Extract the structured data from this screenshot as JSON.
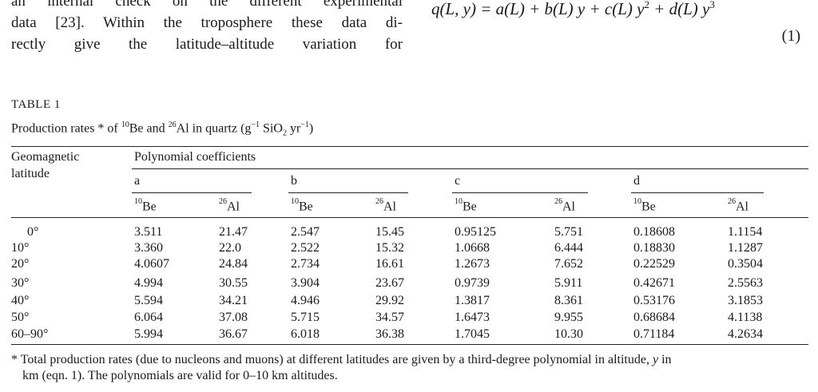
{
  "body_text": {
    "lines": [
      "an internal check on the different experimental",
      "data [23]. Within the troposphere these data di-",
      "rectly give the latitude–altitude variation for"
    ]
  },
  "equation": {
    "lhs": "q(L, y) = a(L) + b(L) y + c(L) y",
    "exp2": "2",
    "mid": " + d(L) y",
    "exp3": "3",
    "number": "(1)"
  },
  "table": {
    "label": "TABLE 1",
    "caption_pre": "Production rates * of ",
    "iso_be_mass": "10",
    "iso_be": "Be",
    "caption_and": " and ",
    "iso_al_mass": "26",
    "iso_al": "Al",
    "caption_post": " in quartz (g",
    "exp_neg1": "−1",
    "caption_sio2": " SiO",
    "sub2": "2",
    "caption_yr": " yr",
    "caption_end": ")",
    "header_lat_line1": "Geomagnetic",
    "header_lat_line2": "latitude",
    "header_group": "Polynomial coefficients",
    "coef_names": [
      "a",
      "b",
      "c",
      "d"
    ],
    "rows": [
      {
        "lat": "0°",
        "vals": [
          "3.511",
          "21.47",
          "2.547",
          "15.45",
          "0.95125",
          "5.751",
          "0.18608",
          "1.1154"
        ]
      },
      {
        "lat": "10°",
        "vals": [
          "3.360",
          "22.0",
          "2.522",
          "15.32",
          "1.0668",
          "6.444",
          "0.18830",
          "1.1287"
        ]
      },
      {
        "lat": "20°",
        "vals": [
          "4.0607",
          "24.84",
          "2.734",
          "16.61",
          "1.2673",
          "7.652",
          "0.22529",
          "0.3504"
        ]
      },
      {
        "lat": "30°",
        "vals": [
          "4.994",
          "30.55",
          "3.904",
          "23.67",
          "0.9739",
          "5.911",
          "0.42671",
          "2.5563"
        ]
      },
      {
        "lat": "40°",
        "vals": [
          "5.594",
          "34.21",
          "4.946",
          "29.92",
          "1.3817",
          "8.361",
          "0.53176",
          "3.1853"
        ]
      },
      {
        "lat": "50°",
        "vals": [
          "6.064",
          "37.08",
          "5.715",
          "34.57",
          "1.6473",
          "9.955",
          "0.68684",
          "4.1138"
        ]
      },
      {
        "lat": "60–90°",
        "vals": [
          "5.994",
          "36.67",
          "6.018",
          "36.38",
          "1.7045",
          "10.30",
          "0.71184",
          "4.2634"
        ]
      }
    ]
  },
  "footnote": {
    "line1_a": "* Total production rates (due to nucleons and muons) at different latitudes are given by a third-degree polynomial in altitude, ",
    "line1_var": "y",
    "line1_b": " in",
    "line2": "km (eqn. 1). The polynomials are valid for 0–10 km altitudes."
  }
}
